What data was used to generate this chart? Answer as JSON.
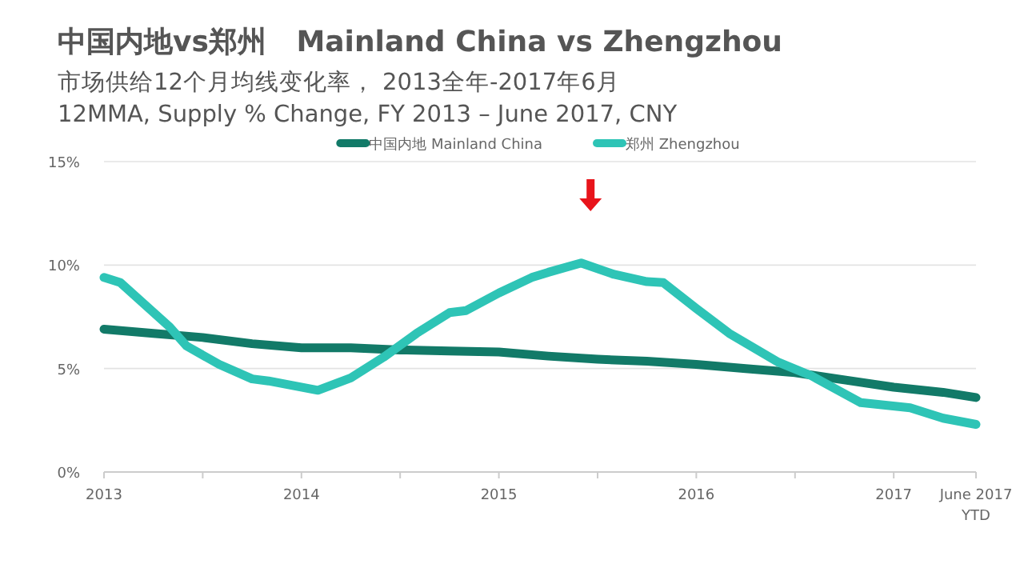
{
  "chart_data": {
    "type": "line",
    "title": "中国内地vs郑州   Mainland China vs Zhengzhou",
    "subtitle": "市场供给12个月均线变化率， 2013全年-2017年6月\n12MMA, Supply % Change, FY 2013 – June 2017, CNY",
    "xlim": [
      "2013-01",
      "2017-06"
    ],
    "xticks": [
      {
        "value": "2013-01",
        "label": "2013"
      },
      {
        "value": "2013-07",
        "label": null
      },
      {
        "value": "2014-01",
        "label": "2014"
      },
      {
        "value": "2014-07",
        "label": null
      },
      {
        "value": "2015-01",
        "label": "2015"
      },
      {
        "value": "2015-07",
        "label": null
      },
      {
        "value": "2016-01",
        "label": "2016"
      },
      {
        "value": "2016-07",
        "label": null
      },
      {
        "value": "2017-01",
        "label": "2017"
      },
      {
        "value": "2017-06",
        "label": "June 2017 YTD"
      }
    ],
    "ylim": [
      0,
      15
    ],
    "yticks": [
      {
        "value": 0,
        "label": "0%"
      },
      {
        "value": 5,
        "label": "5%"
      },
      {
        "value": 10,
        "label": "10%"
      },
      {
        "value": 15,
        "label": "15%"
      }
    ],
    "grid": "y",
    "legend": "top",
    "marker": "none",
    "line_style": "solid",
    "series": [
      {
        "name": "中国内地 Mainland China",
        "color": "#127a68",
        "x": [
          "2013-01",
          "2013-04",
          "2013-07",
          "2013-10",
          "2014-01",
          "2014-04",
          "2014-07",
          "2014-10",
          "2015-01",
          "2015-04",
          "2015-07",
          "2015-10",
          "2016-01",
          "2016-04",
          "2016-07",
          "2016-10",
          "2017-01",
          "2017-04",
          "2017-06"
        ],
        "values": [
          6.9,
          6.7,
          6.5,
          6.2,
          6.0,
          6.0,
          5.9,
          5.85,
          5.8,
          5.6,
          5.45,
          5.35,
          5.2,
          5.0,
          4.8,
          4.45,
          4.1,
          3.85,
          3.6
        ]
      },
      {
        "name": "郑州 Zhengzhou",
        "color": "#2ec4b6",
        "x": [
          "2013-01",
          "2013-02",
          "2013-05",
          "2013-06",
          "2013-08",
          "2013-10",
          "2013-11",
          "2014-02",
          "2014-04",
          "2014-06",
          "2014-08",
          "2014-10",
          "2014-11",
          "2015-01",
          "2015-03",
          "2015-04",
          "2015-06",
          "2015-08",
          "2015-10",
          "2015-11",
          "2016-01",
          "2016-03",
          "2016-06",
          "2016-08",
          "2016-11",
          "2017-02",
          "2017-04",
          "2017-06"
        ],
        "values": [
          9.4,
          9.15,
          7.0,
          6.1,
          5.2,
          4.5,
          4.4,
          3.95,
          4.55,
          5.55,
          6.7,
          7.7,
          7.8,
          8.65,
          9.4,
          9.65,
          10.1,
          9.55,
          9.2,
          9.15,
          7.9,
          6.7,
          5.3,
          4.65,
          3.35,
          3.1,
          2.6,
          2.3
        ]
      }
    ]
  }
}
